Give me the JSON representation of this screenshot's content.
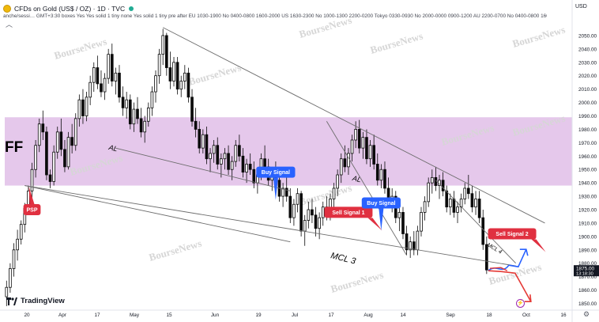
{
  "header": {
    "symbol_title": "CFDs on Gold (US$ / OZ) · 1D · TVC",
    "indicator_line": "anche/sessi…  GMT+3:30 boxes Yes Yes solid 1 tiny none Yes solid 1 tiny pre after EU 1030-1900 No 0400-0800 1600-2000 US 1630-2300 No 1000-1300 2200-0200 Tokyo 0330-0930 No 2000-0000 0900-1200 AU 2200-0700 No 0400-0800 1600-…",
    "currency": "USD"
  },
  "overlay_text": {
    "corner_label": "FF",
    "brand": "TradingView",
    "watermark": "BourseNews"
  },
  "colors": {
    "up": "#0a0a0a",
    "down": "#0a0a0a",
    "zone": "#e1bee7",
    "buy_callout": "#2962ff",
    "sell_callout": "#e03040",
    "price_tag": "#131722",
    "projection_blue": "#2962ff",
    "projection_red": "#e53935"
  },
  "chart_data": {
    "type": "candlestick",
    "timeframe": "1D",
    "y_axis": {
      "range": [
        1845,
        2060
      ],
      "ticks": [
        1850,
        1860,
        1870,
        1880,
        1890,
        1900,
        1910,
        1920,
        1930,
        1940,
        1950,
        1960,
        1970,
        1980,
        1990,
        2000,
        2010,
        2020,
        2030,
        2040,
        2050
      ]
    },
    "x_axis": {
      "ticks": [
        "20",
        "Apr",
        "17",
        "May",
        "15",
        "Jun",
        "19",
        "Jul",
        "17",
        "Aug",
        "14",
        "Sep",
        "18",
        "Oct",
        "16"
      ]
    },
    "last_price": {
      "value": "1875.00",
      "countdown": "13:18:30"
    },
    "zone": {
      "from": 1938,
      "to": 1989
    },
    "candles": [
      {
        "o": 1855,
        "h": 1867,
        "l": 1848,
        "c": 1862
      },
      {
        "o": 1862,
        "h": 1880,
        "l": 1858,
        "c": 1876
      },
      {
        "o": 1876,
        "h": 1895,
        "l": 1870,
        "c": 1890
      },
      {
        "o": 1890,
        "h": 1905,
        "l": 1882,
        "c": 1898
      },
      {
        "o": 1898,
        "h": 1912,
        "l": 1894,
        "c": 1909
      },
      {
        "o": 1909,
        "h": 1925,
        "l": 1903,
        "c": 1921
      },
      {
        "o": 1921,
        "h": 1938,
        "l": 1916,
        "c": 1934
      },
      {
        "o": 1934,
        "h": 1955,
        "l": 1929,
        "c": 1950
      },
      {
        "o": 1950,
        "h": 1972,
        "l": 1944,
        "c": 1968
      },
      {
        "o": 1968,
        "h": 1988,
        "l": 1963,
        "c": 1984
      },
      {
        "o": 1984,
        "h": 1994,
        "l": 1972,
        "c": 1978
      },
      {
        "o": 1978,
        "h": 1982,
        "l": 1942,
        "c": 1946
      },
      {
        "o": 1946,
        "h": 1950,
        "l": 1936,
        "c": 1941
      },
      {
        "o": 1941,
        "h": 1968,
        "l": 1938,
        "c": 1963
      },
      {
        "o": 1963,
        "h": 1982,
        "l": 1958,
        "c": 1978
      },
      {
        "o": 1978,
        "h": 1988,
        "l": 1960,
        "c": 1965
      },
      {
        "o": 1965,
        "h": 1972,
        "l": 1948,
        "c": 1952
      },
      {
        "o": 1952,
        "h": 1978,
        "l": 1950,
        "c": 1974
      },
      {
        "o": 1974,
        "h": 1984,
        "l": 1962,
        "c": 1968
      },
      {
        "o": 1968,
        "h": 1992,
        "l": 1964,
        "c": 1988
      },
      {
        "o": 1988,
        "h": 2006,
        "l": 1982,
        "c": 2002
      },
      {
        "o": 2002,
        "h": 2010,
        "l": 1984,
        "c": 1990
      },
      {
        "o": 1990,
        "h": 2008,
        "l": 1986,
        "c": 2004
      },
      {
        "o": 2004,
        "h": 2020,
        "l": 1998,
        "c": 2015
      },
      {
        "o": 2015,
        "h": 2030,
        "l": 2008,
        "c": 2026
      },
      {
        "o": 2026,
        "h": 2035,
        "l": 2010,
        "c": 2014
      },
      {
        "o": 2014,
        "h": 2024,
        "l": 2004,
        "c": 2008
      },
      {
        "o": 2008,
        "h": 2022,
        "l": 2002,
        "c": 2018
      },
      {
        "o": 2018,
        "h": 2040,
        "l": 2014,
        "c": 2036
      },
      {
        "o": 2036,
        "h": 2044,
        "l": 2012,
        "c": 2016
      },
      {
        "o": 2016,
        "h": 2026,
        "l": 2006,
        "c": 2022
      },
      {
        "o": 2022,
        "h": 2028,
        "l": 2000,
        "c": 2004
      },
      {
        "o": 2004,
        "h": 2012,
        "l": 1990,
        "c": 1996
      },
      {
        "o": 1996,
        "h": 2008,
        "l": 1988,
        "c": 2002
      },
      {
        "o": 2002,
        "h": 2006,
        "l": 1980,
        "c": 1984
      },
      {
        "o": 1984,
        "h": 2000,
        "l": 1978,
        "c": 1995
      },
      {
        "o": 1995,
        "h": 2004,
        "l": 1984,
        "c": 1988
      },
      {
        "o": 1988,
        "h": 1996,
        "l": 1974,
        "c": 1978
      },
      {
        "o": 1978,
        "h": 1990,
        "l": 1970,
        "c": 1986
      },
      {
        "o": 1986,
        "h": 2000,
        "l": 1982,
        "c": 1996
      },
      {
        "o": 1996,
        "h": 2012,
        "l": 1990,
        "c": 2008
      },
      {
        "o": 2008,
        "h": 2024,
        "l": 2000,
        "c": 2020
      },
      {
        "o": 2020,
        "h": 2040,
        "l": 2014,
        "c": 2036
      },
      {
        "o": 2036,
        "h": 2055,
        "l": 2028,
        "c": 2050
      },
      {
        "o": 2050,
        "h": 2052,
        "l": 2020,
        "c": 2026
      },
      {
        "o": 2026,
        "h": 2038,
        "l": 2010,
        "c": 2016
      },
      {
        "o": 2016,
        "h": 2034,
        "l": 2012,
        "c": 2030
      },
      {
        "o": 2030,
        "h": 2034,
        "l": 2006,
        "c": 2010
      },
      {
        "o": 2010,
        "h": 2020,
        "l": 2004,
        "c": 2016
      },
      {
        "o": 2016,
        "h": 2028,
        "l": 2010,
        "c": 2022
      },
      {
        "o": 2022,
        "h": 2026,
        "l": 2000,
        "c": 2004
      },
      {
        "o": 2004,
        "h": 2010,
        "l": 1982,
        "c": 1986
      },
      {
        "o": 1986,
        "h": 1996,
        "l": 1974,
        "c": 1980
      },
      {
        "o": 1980,
        "h": 1986,
        "l": 1962,
        "c": 1966
      },
      {
        "o": 1966,
        "h": 1980,
        "l": 1962,
        "c": 1976
      },
      {
        "o": 1976,
        "h": 1982,
        "l": 1954,
        "c": 1958
      },
      {
        "o": 1958,
        "h": 1966,
        "l": 1948,
        "c": 1962
      },
      {
        "o": 1962,
        "h": 1972,
        "l": 1955,
        "c": 1968
      },
      {
        "o": 1968,
        "h": 1974,
        "l": 1950,
        "c": 1954
      },
      {
        "o": 1954,
        "h": 1962,
        "l": 1944,
        "c": 1958
      },
      {
        "o": 1958,
        "h": 1966,
        "l": 1950,
        "c": 1962
      },
      {
        "o": 1962,
        "h": 1968,
        "l": 1946,
        "c": 1950
      },
      {
        "o": 1950,
        "h": 1960,
        "l": 1942,
        "c": 1956
      },
      {
        "o": 1956,
        "h": 1972,
        "l": 1952,
        "c": 1968
      },
      {
        "o": 1968,
        "h": 1976,
        "l": 1956,
        "c": 1960
      },
      {
        "o": 1960,
        "h": 1966,
        "l": 1944,
        "c": 1948
      },
      {
        "o": 1948,
        "h": 1958,
        "l": 1940,
        "c": 1954
      },
      {
        "o": 1954,
        "h": 1962,
        "l": 1946,
        "c": 1950
      },
      {
        "o": 1950,
        "h": 1956,
        "l": 1936,
        "c": 1940
      },
      {
        "o": 1940,
        "h": 1950,
        "l": 1932,
        "c": 1946
      },
      {
        "o": 1946,
        "h": 1962,
        "l": 1942,
        "c": 1958
      },
      {
        "o": 1958,
        "h": 1968,
        "l": 1948,
        "c": 1952
      },
      {
        "o": 1952,
        "h": 1958,
        "l": 1938,
        "c": 1942
      },
      {
        "o": 1942,
        "h": 1952,
        "l": 1934,
        "c": 1948
      },
      {
        "o": 1948,
        "h": 1956,
        "l": 1938,
        "c": 1942
      },
      {
        "o": 1942,
        "h": 1948,
        "l": 1926,
        "c": 1930
      },
      {
        "o": 1930,
        "h": 1940,
        "l": 1922,
        "c": 1936
      },
      {
        "o": 1936,
        "h": 1946,
        "l": 1926,
        "c": 1930
      },
      {
        "o": 1930,
        "h": 1936,
        "l": 1910,
        "c": 1914
      },
      {
        "o": 1914,
        "h": 1928,
        "l": 1908,
        "c": 1924
      },
      {
        "o": 1924,
        "h": 1936,
        "l": 1918,
        "c": 1932
      },
      {
        "o": 1932,
        "h": 1934,
        "l": 1900,
        "c": 1904
      },
      {
        "o": 1904,
        "h": 1916,
        "l": 1893,
        "c": 1912
      },
      {
        "o": 1912,
        "h": 1926,
        "l": 1906,
        "c": 1920
      },
      {
        "o": 1920,
        "h": 1928,
        "l": 1910,
        "c": 1916
      },
      {
        "o": 1916,
        "h": 1922,
        "l": 1900,
        "c": 1906
      },
      {
        "o": 1906,
        "h": 1918,
        "l": 1898,
        "c": 1914
      },
      {
        "o": 1914,
        "h": 1926,
        "l": 1908,
        "c": 1922
      },
      {
        "o": 1922,
        "h": 1930,
        "l": 1912,
        "c": 1916
      },
      {
        "o": 1916,
        "h": 1932,
        "l": 1912,
        "c": 1928
      },
      {
        "o": 1928,
        "h": 1940,
        "l": 1922,
        "c": 1936
      },
      {
        "o": 1936,
        "h": 1950,
        "l": 1930,
        "c": 1946
      },
      {
        "o": 1946,
        "h": 1962,
        "l": 1940,
        "c": 1958
      },
      {
        "o": 1958,
        "h": 1968,
        "l": 1948,
        "c": 1952
      },
      {
        "o": 1952,
        "h": 1966,
        "l": 1946,
        "c": 1962
      },
      {
        "o": 1962,
        "h": 1976,
        "l": 1956,
        "c": 1972
      },
      {
        "o": 1972,
        "h": 1986,
        "l": 1966,
        "c": 1980
      },
      {
        "o": 1980,
        "h": 1987,
        "l": 1962,
        "c": 1966
      },
      {
        "o": 1966,
        "h": 1978,
        "l": 1958,
        "c": 1974
      },
      {
        "o": 1974,
        "h": 1980,
        "l": 1954,
        "c": 1958
      },
      {
        "o": 1958,
        "h": 1972,
        "l": 1952,
        "c": 1968
      },
      {
        "o": 1968,
        "h": 1976,
        "l": 1950,
        "c": 1954
      },
      {
        "o": 1954,
        "h": 1962,
        "l": 1938,
        "c": 1942
      },
      {
        "o": 1942,
        "h": 1954,
        "l": 1936,
        "c": 1950
      },
      {
        "o": 1950,
        "h": 1956,
        "l": 1932,
        "c": 1936
      },
      {
        "o": 1936,
        "h": 1944,
        "l": 1922,
        "c": 1926
      },
      {
        "o": 1926,
        "h": 1936,
        "l": 1918,
        "c": 1930
      },
      {
        "o": 1930,
        "h": 1934,
        "l": 1910,
        "c": 1914
      },
      {
        "o": 1914,
        "h": 1924,
        "l": 1904,
        "c": 1918
      },
      {
        "o": 1918,
        "h": 1922,
        "l": 1898,
        "c": 1902
      },
      {
        "o": 1902,
        "h": 1908,
        "l": 1886,
        "c": 1890
      },
      {
        "o": 1890,
        "h": 1900,
        "l": 1884,
        "c": 1896
      },
      {
        "o": 1896,
        "h": 1904,
        "l": 1886,
        "c": 1890
      },
      {
        "o": 1890,
        "h": 1908,
        "l": 1886,
        "c": 1904
      },
      {
        "o": 1904,
        "h": 1922,
        "l": 1900,
        "c": 1918
      },
      {
        "o": 1918,
        "h": 1930,
        "l": 1912,
        "c": 1926
      },
      {
        "o": 1926,
        "h": 1944,
        "l": 1922,
        "c": 1940
      },
      {
        "o": 1940,
        "h": 1950,
        "l": 1932,
        "c": 1944
      },
      {
        "o": 1944,
        "h": 1952,
        "l": 1934,
        "c": 1938
      },
      {
        "o": 1938,
        "h": 1946,
        "l": 1928,
        "c": 1942
      },
      {
        "o": 1942,
        "h": 1948,
        "l": 1930,
        "c": 1934
      },
      {
        "o": 1934,
        "h": 1938,
        "l": 1918,
        "c": 1922
      },
      {
        "o": 1922,
        "h": 1932,
        "l": 1916,
        "c": 1928
      },
      {
        "o": 1928,
        "h": 1934,
        "l": 1914,
        "c": 1918
      },
      {
        "o": 1918,
        "h": 1926,
        "l": 1910,
        "c": 1922
      },
      {
        "o": 1922,
        "h": 1932,
        "l": 1918,
        "c": 1928
      },
      {
        "o": 1928,
        "h": 1940,
        "l": 1924,
        "c": 1936
      },
      {
        "o": 1936,
        "h": 1946,
        "l": 1928,
        "c": 1932
      },
      {
        "o": 1932,
        "h": 1938,
        "l": 1918,
        "c": 1922
      },
      {
        "o": 1922,
        "h": 1934,
        "l": 1916,
        "c": 1928
      },
      {
        "o": 1928,
        "h": 1934,
        "l": 1910,
        "c": 1914
      },
      {
        "o": 1914,
        "h": 1920,
        "l": 1890,
        "c": 1894
      },
      {
        "o": 1894,
        "h": 1900,
        "l": 1872,
        "c": 1875
      }
    ],
    "lines": [
      {
        "kind": "trend",
        "from": {
          "i": 5,
          "p": 1938
        },
        "to": {
          "i": 140,
          "p": 1878
        }
      },
      {
        "kind": "trend",
        "from": {
          "i": 5,
          "p": 1938
        },
        "to": {
          "i": 78,
          "p": 1896
        }
      },
      {
        "kind": "trend",
        "from": {
          "i": 30,
          "p": 1966
        },
        "to": {
          "i": 78,
          "p": 1934
        }
      },
      {
        "kind": "trend",
        "from": {
          "i": 43,
          "p": 2056
        },
        "to": {
          "i": 148,
          "p": 1910
        }
      },
      {
        "kind": "trend",
        "from": {
          "i": 88,
          "p": 1986
        },
        "to": {
          "i": 110,
          "p": 1886
        }
      },
      {
        "kind": "trend",
        "from": {
          "i": 118,
          "p": 1942
        },
        "to": {
          "i": 140,
          "p": 1880
        }
      }
    ],
    "annotations": [
      {
        "text": "PSP",
        "kind": "sell",
        "i": 7,
        "p": 1920
      },
      {
        "text": "Buy Signal",
        "kind": "buy",
        "i": 74,
        "p": 1948
      },
      {
        "text": "Sell Signal 1",
        "kind": "sell",
        "i": 94,
        "p": 1918
      },
      {
        "text": "Buy Signal",
        "kind": "buy",
        "i": 103,
        "p": 1925
      },
      {
        "text": "Sell Signal 2",
        "kind": "sell",
        "i": 139,
        "p": 1902
      },
      {
        "text": "AL",
        "kind": "label",
        "i": 28,
        "p": 1965
      },
      {
        "text": "AL",
        "kind": "label",
        "i": 95,
        "p": 1942
      },
      {
        "text": "MCL 3",
        "kind": "label",
        "i": 89,
        "p": 1884
      },
      {
        "text": "MCL 4",
        "kind": "label",
        "i": 132,
        "p": 1893
      }
    ]
  }
}
